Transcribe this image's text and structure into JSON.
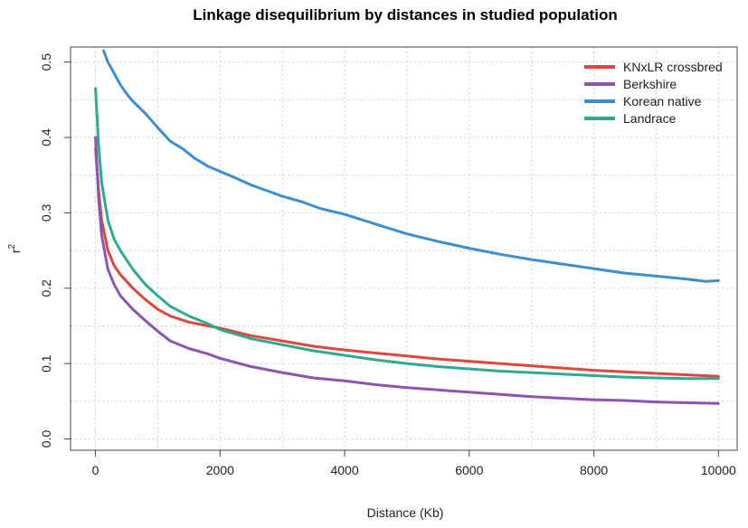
{
  "chart_data": {
    "type": "line",
    "title": "Linkage disequilibrium by distances in studied population",
    "xlabel": "Distance (Kb)",
    "ylabel": "r",
    "ylabel_sup": "2",
    "xlim": [
      -400,
      10300
    ],
    "ylim": [
      -0.015,
      0.52
    ],
    "xticks": [
      0,
      2000,
      4000,
      6000,
      8000,
      10000
    ],
    "yticks": [
      0.0,
      0.1,
      0.2,
      0.3,
      0.4,
      0.5
    ],
    "xtick_labels": [
      "0",
      "2000",
      "4000",
      "6000",
      "8000",
      "10000"
    ],
    "ytick_labels": [
      "0.0",
      "0.1",
      "0.2",
      "0.3",
      "0.4",
      "0.5"
    ],
    "grid": true,
    "legend_position": "top-right",
    "series": [
      {
        "name": "KNxLR crossbred",
        "color": "#e0463c",
        "x": [
          0,
          50,
          100,
          200,
          300,
          400,
          600,
          800,
          1000,
          1200,
          1500,
          1800,
          2000,
          2500,
          3000,
          3500,
          4000,
          4500,
          5000,
          5500,
          6000,
          6500,
          7000,
          7500,
          8000,
          8500,
          9000,
          9500,
          10000
        ],
        "y": [
          0.385,
          0.33,
          0.29,
          0.25,
          0.23,
          0.218,
          0.2,
          0.185,
          0.172,
          0.163,
          0.155,
          0.15,
          0.147,
          0.137,
          0.13,
          0.123,
          0.118,
          0.114,
          0.11,
          0.106,
          0.103,
          0.1,
          0.097,
          0.094,
          0.091,
          0.089,
          0.087,
          0.085,
          0.083
        ]
      },
      {
        "name": "Berkshire",
        "color": "#8e55b0",
        "x": [
          0,
          50,
          100,
          200,
          300,
          400,
          600,
          800,
          1000,
          1200,
          1500,
          1800,
          2000,
          2500,
          3000,
          3500,
          4000,
          4500,
          5000,
          5500,
          6000,
          6500,
          7000,
          7500,
          8000,
          8500,
          9000,
          9500,
          10000
        ],
        "y": [
          0.4,
          0.32,
          0.27,
          0.225,
          0.205,
          0.19,
          0.172,
          0.157,
          0.143,
          0.13,
          0.12,
          0.113,
          0.107,
          0.096,
          0.088,
          0.081,
          0.077,
          0.072,
          0.068,
          0.065,
          0.062,
          0.059,
          0.056,
          0.054,
          0.052,
          0.051,
          0.049,
          0.048,
          0.047
        ]
      },
      {
        "name": "Korean native",
        "color": "#3b8fd0",
        "x": [
          130,
          200,
          300,
          400,
          500,
          600,
          800,
          1000,
          1200,
          1400,
          1600,
          1800,
          2000,
          2200,
          2500,
          2800,
          3000,
          3300,
          3600,
          4000,
          4500,
          5000,
          5500,
          6000,
          6500,
          7000,
          7500,
          8000,
          8500,
          9000,
          9500,
          9800,
          10000
        ],
        "y": [
          0.515,
          0.5,
          0.485,
          0.47,
          0.458,
          0.448,
          0.432,
          0.413,
          0.395,
          0.385,
          0.372,
          0.362,
          0.355,
          0.348,
          0.337,
          0.328,
          0.322,
          0.315,
          0.306,
          0.298,
          0.285,
          0.272,
          0.262,
          0.253,
          0.245,
          0.238,
          0.232,
          0.226,
          0.22,
          0.216,
          0.212,
          0.209,
          0.21
        ]
      },
      {
        "name": "Landrace",
        "color": "#2daa8f",
        "x": [
          0,
          50,
          100,
          200,
          300,
          400,
          600,
          800,
          1000,
          1200,
          1500,
          1800,
          2000,
          2500,
          3000,
          3500,
          4000,
          4500,
          5000,
          5500,
          6000,
          6500,
          7000,
          7500,
          8000,
          8500,
          9000,
          9500,
          10000
        ],
        "y": [
          0.465,
          0.39,
          0.34,
          0.29,
          0.265,
          0.25,
          0.225,
          0.205,
          0.19,
          0.176,
          0.163,
          0.153,
          0.145,
          0.133,
          0.125,
          0.117,
          0.111,
          0.105,
          0.1,
          0.096,
          0.093,
          0.09,
          0.088,
          0.086,
          0.084,
          0.082,
          0.081,
          0.08,
          0.08
        ]
      }
    ]
  }
}
